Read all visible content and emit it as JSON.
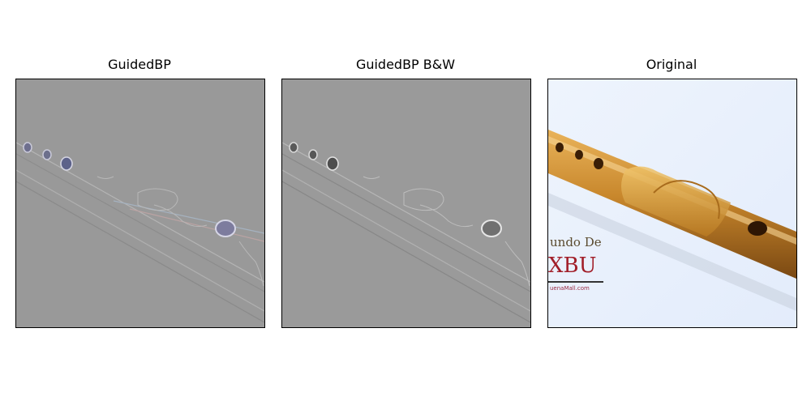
{
  "panels": [
    {
      "title": "GuidedBP"
    },
    {
      "title": "GuidedBP B&W"
    },
    {
      "title": "Original"
    }
  ],
  "original_image": {
    "watermark_lines": [
      "undo De",
      "XBU",
      "uenaMall.com"
    ]
  },
  "colors": {
    "saliency_bg": "#999999",
    "original_bg": "#e8f0fc",
    "flute_wood": "#c88a2c"
  }
}
